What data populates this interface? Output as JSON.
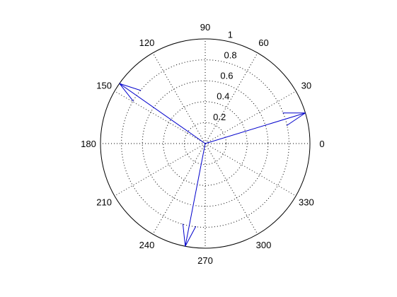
{
  "chart_data": {
    "type": "compass",
    "title": "",
    "radial_ticks": [
      "0.2",
      "0.4",
      "0.6",
      "0.8",
      "1"
    ],
    "radial_values": [
      0.2,
      0.4,
      0.6,
      0.8,
      1.0
    ],
    "rlim": [
      0,
      1
    ],
    "angle_ticks": [
      "0",
      "30",
      "60",
      "90",
      "120",
      "150",
      "180",
      "210",
      "240",
      "270",
      "300",
      "330"
    ],
    "angle_values_deg": [
      0,
      30,
      60,
      90,
      120,
      150,
      180,
      210,
      240,
      270,
      300,
      330
    ],
    "grid": true,
    "series": [
      {
        "type": "arrows",
        "color": "#0000cc",
        "arrows": [
          {
            "angle_deg": 17,
            "magnitude": 1.0
          },
          {
            "angle_deg": 145,
            "magnitude": 1.0
          },
          {
            "angle_deg": 259,
            "magnitude": 1.0
          }
        ]
      }
    ]
  }
}
